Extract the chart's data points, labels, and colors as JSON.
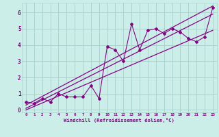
{
  "title": "",
  "xlabel": "Windchill (Refroidissement éolien,°C)",
  "ylabel": "",
  "bg_color": "#cceee8",
  "grid_color": "#aad4ce",
  "line_color": "#880088",
  "xlim": [
    -0.5,
    23.5
  ],
  "ylim": [
    -0.15,
    6.6
  ],
  "xticks": [
    0,
    1,
    2,
    3,
    4,
    5,
    6,
    7,
    8,
    9,
    10,
    11,
    12,
    13,
    14,
    15,
    16,
    17,
    18,
    19,
    20,
    21,
    22,
    23
  ],
  "yticks": [
    0,
    1,
    2,
    3,
    4,
    5,
    6
  ],
  "scatter_x": [
    0,
    1,
    2,
    3,
    4,
    5,
    6,
    7,
    8,
    9,
    10,
    11,
    12,
    13,
    14,
    15,
    16,
    17,
    18,
    19,
    20,
    21,
    22,
    23
  ],
  "scatter_y": [
    0.5,
    0.4,
    0.7,
    0.5,
    1.0,
    0.8,
    0.8,
    0.8,
    1.5,
    0.7,
    3.9,
    3.7,
    3.0,
    5.3,
    3.7,
    4.9,
    5.0,
    4.7,
    5.0,
    4.8,
    4.4,
    4.2,
    4.5,
    6.3
  ],
  "line1_x": [
    0,
    23
  ],
  "line1_y": [
    0.1,
    5.9
  ],
  "line2_x": [
    0,
    23
  ],
  "line2_y": [
    0.3,
    6.4
  ],
  "line3_x": [
    0,
    23
  ],
  "line3_y": [
    0.0,
    4.9
  ]
}
